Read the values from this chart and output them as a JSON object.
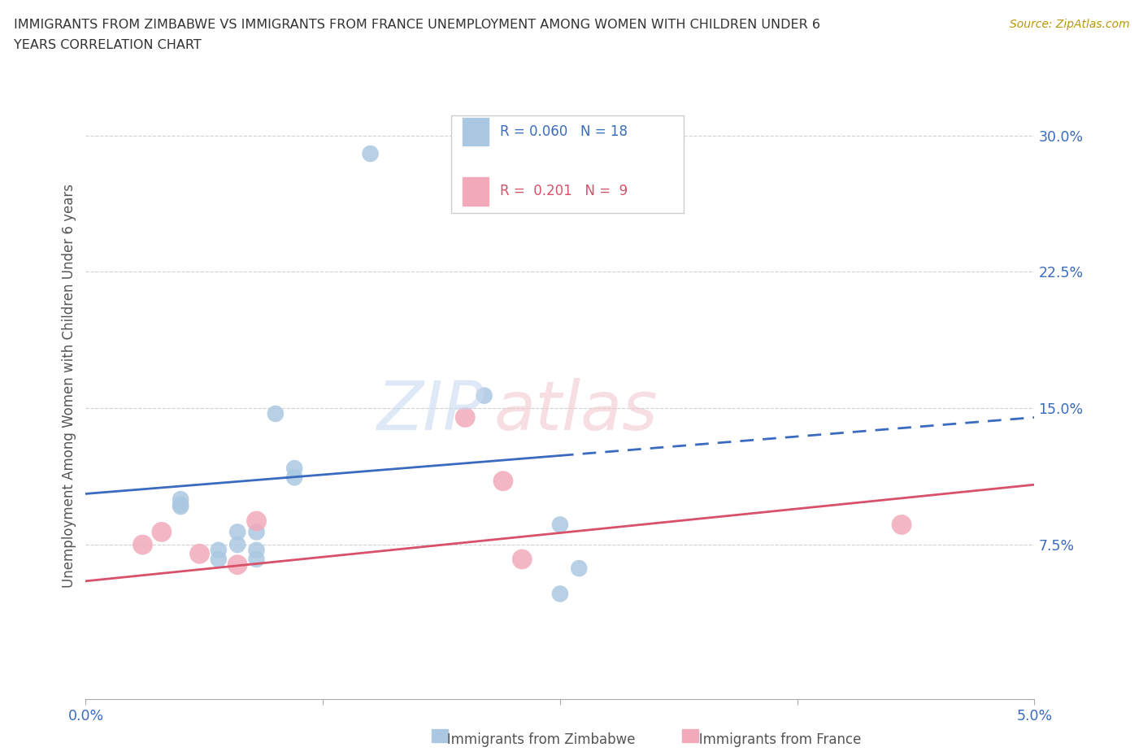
{
  "title_line1": "IMMIGRANTS FROM ZIMBABWE VS IMMIGRANTS FROM FRANCE UNEMPLOYMENT AMONG WOMEN WITH CHILDREN UNDER 6",
  "title_line2": "YEARS CORRELATION CHART",
  "source": "Source: ZipAtlas.com",
  "ylabel": "Unemployment Among Women with Children Under 6 years",
  "xlim": [
    0.0,
    0.05
  ],
  "ylim": [
    -0.01,
    0.335
  ],
  "yticks": [
    0.075,
    0.15,
    0.225,
    0.3
  ],
  "ytick_labels": [
    "7.5%",
    "15.0%",
    "22.5%",
    "30.0%"
  ],
  "xticks": [
    0.0,
    0.0125,
    0.025,
    0.0375,
    0.05
  ],
  "xtick_labels": [
    "0.0%",
    "",
    "",
    "",
    "5.0%"
  ],
  "color_zimbabwe": "#abc8e2",
  "color_france": "#f2aabb",
  "line_color_zimbabwe": "#3a6bbf",
  "line_color_france": "#d9506a",
  "watermark_zip": "ZIP",
  "watermark_atlas": "atlas",
  "zimbabwe_x": [
    0.005,
    0.005,
    0.005,
    0.007,
    0.007,
    0.008,
    0.008,
    0.009,
    0.009,
    0.009,
    0.01,
    0.011,
    0.011,
    0.015,
    0.021,
    0.025,
    0.026,
    0.025
  ],
  "zimbabwe_y": [
    0.096,
    0.097,
    0.1,
    0.067,
    0.072,
    0.075,
    0.082,
    0.067,
    0.072,
    0.082,
    0.147,
    0.117,
    0.112,
    0.29,
    0.157,
    0.086,
    0.062,
    0.048
  ],
  "france_x": [
    0.003,
    0.004,
    0.006,
    0.008,
    0.009,
    0.02,
    0.022,
    0.023,
    0.043
  ],
  "france_y": [
    0.075,
    0.082,
    0.07,
    0.064,
    0.088,
    0.145,
    0.11,
    0.067,
    0.086
  ],
  "background_color": "#ffffff",
  "grid_color": "#d0d0d0",
  "solid_line_end_x": 0.025,
  "r_zimbabwe": "0.060",
  "n_zimbabwe": "18",
  "r_france": "0.201",
  "n_france": "9"
}
